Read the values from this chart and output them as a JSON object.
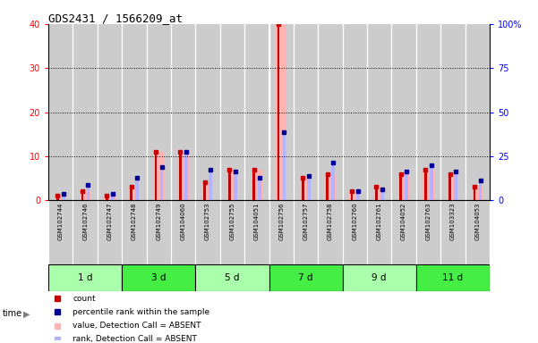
{
  "title": "GDS2431 / 1566209_at",
  "samples": [
    "GSM102744",
    "GSM102746",
    "GSM102747",
    "GSM102748",
    "GSM102749",
    "GSM104060",
    "GSM102753",
    "GSM102755",
    "GSM104051",
    "GSM102756",
    "GSM102757",
    "GSM102758",
    "GSM102760",
    "GSM102761",
    "GSM104052",
    "GSM102763",
    "GSM103323",
    "GSM104053"
  ],
  "time_groups": [
    {
      "label": "1 d",
      "start": 0,
      "end": 3,
      "color": "#aaffaa"
    },
    {
      "label": "3 d",
      "start": 3,
      "end": 6,
      "color": "#44ee44"
    },
    {
      "label": "5 d",
      "start": 6,
      "end": 9,
      "color": "#aaffaa"
    },
    {
      "label": "7 d",
      "start": 9,
      "end": 12,
      "color": "#44ee44"
    },
    {
      "label": "9 d",
      "start": 12,
      "end": 15,
      "color": "#aaffaa"
    },
    {
      "label": "11 d",
      "start": 15,
      "end": 18,
      "color": "#44ee44"
    }
  ],
  "count_values": [
    1,
    2,
    1,
    3,
    11,
    11,
    4,
    7,
    7,
    40,
    5,
    6,
    2,
    3,
    6,
    7,
    6,
    3
  ],
  "percentile_values": [
    1.5,
    3.5,
    1.5,
    5.0,
    7.5,
    11.0,
    7.0,
    6.5,
    5.0,
    15.5,
    5.5,
    8.5,
    2.0,
    2.5,
    6.5,
    8.0,
    6.5,
    4.5
  ],
  "count_color": "#cc0000",
  "percentile_color": "#000099",
  "absent_value_color": "#ffb3b3",
  "absent_rank_color": "#b3b3ff",
  "ylim_left": [
    0,
    40
  ],
  "ylim_right": [
    0,
    100
  ],
  "yticks_left": [
    0,
    10,
    20,
    30,
    40
  ],
  "yticks_right": [
    0,
    25,
    50,
    75,
    100
  ],
  "yticklabels_right": [
    "0",
    "25",
    "50",
    "75",
    "100%"
  ],
  "bg_color": "#ffffff",
  "bar_bg": "#cccccc",
  "legend_items": [
    {
      "label": "count",
      "color": "#cc0000"
    },
    {
      "label": "percentile rank within the sample",
      "color": "#000099"
    },
    {
      "label": "value, Detection Call = ABSENT",
      "color": "#ffb3b3"
    },
    {
      "label": "rank, Detection Call = ABSENT",
      "color": "#b3b3ff"
    }
  ]
}
